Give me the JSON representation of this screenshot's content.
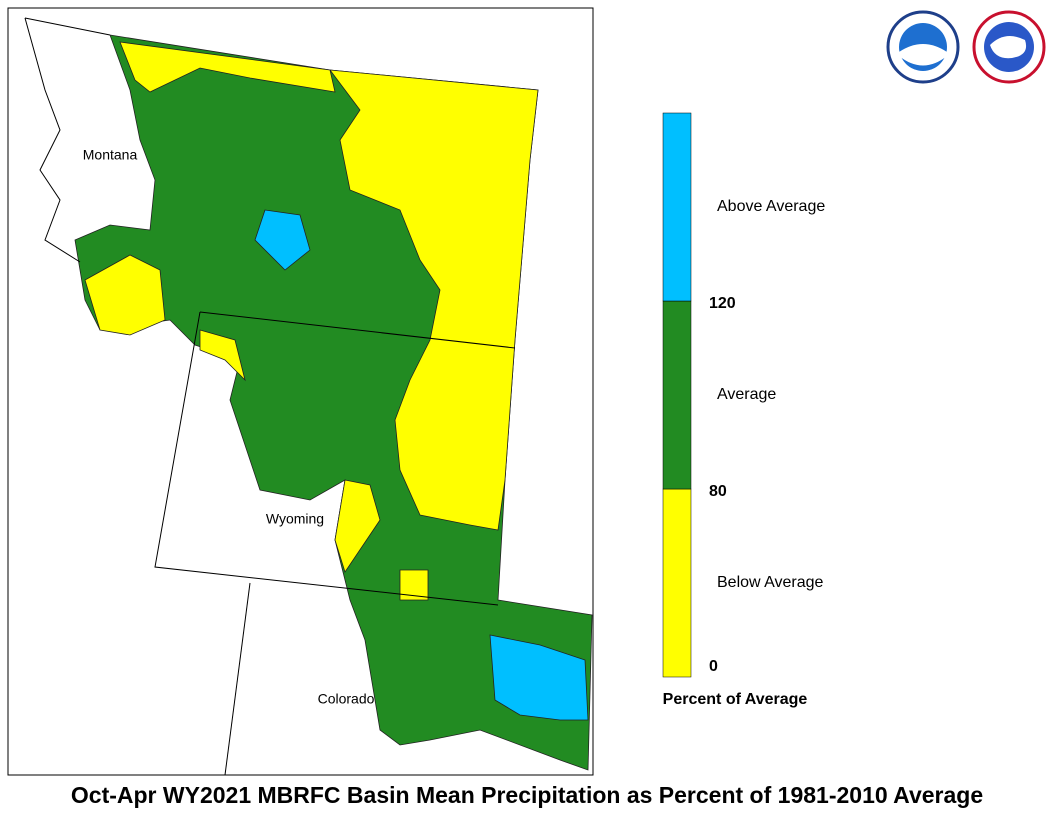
{
  "map": {
    "title": "Oct-Apr WY2021 MBRFC Basin Mean Precipitation as Percent of 1981-2010 Average",
    "states": [
      "Montana",
      "Wyoming",
      "Colorado"
    ],
    "legend": {
      "title": "Percent of Average",
      "bins": [
        {
          "label": "Below Average",
          "color": "#ffff00"
        },
        {
          "label": "Average",
          "color": "#228b22"
        },
        {
          "label": "Above Average",
          "color": "#00bfff"
        }
      ],
      "breaks": [
        0,
        80,
        120
      ]
    }
  }
}
